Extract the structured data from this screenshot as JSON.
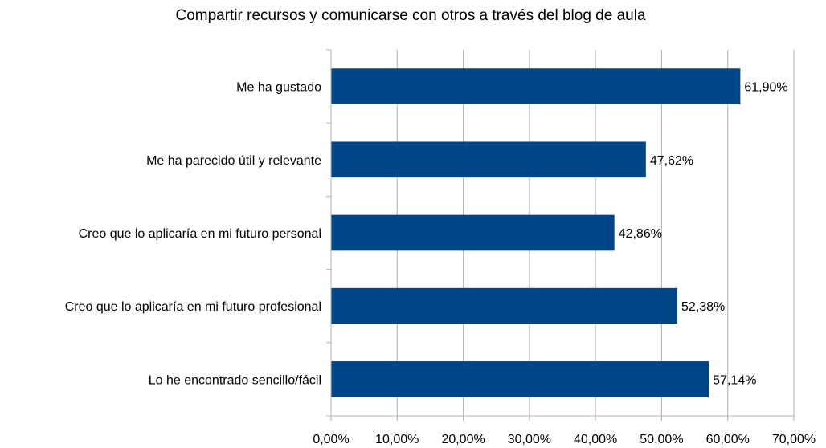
{
  "chart_data": {
    "type": "bar",
    "orientation": "horizontal",
    "title": "Compartir recursos y comunicarse con otros a través del blog de aula",
    "categories": [
      "Me ha gustado",
      "Me ha parecido útil y relevante",
      "Creo que lo aplicaría en mi futuro personal",
      "Creo que lo aplicaría en mi futuro profesional",
      "Lo he encontrado sencillo/fácil"
    ],
    "values": [
      61.9,
      47.62,
      42.86,
      52.38,
      57.14
    ],
    "data_labels": [
      "61,90%",
      "47,62%",
      "42,86%",
      "52,38%",
      "57,14%"
    ],
    "xlim": [
      0,
      70
    ],
    "x_ticks": [
      0,
      10,
      20,
      30,
      40,
      50,
      60,
      70
    ],
    "x_tick_labels": [
      "0,00%",
      "10,00%",
      "20,00%",
      "30,00%",
      "40,00%",
      "50,00%",
      "60,00%",
      "70,00%"
    ],
    "grid": "vertical",
    "legend": "none",
    "bar_color": "#004586",
    "grid_color": "#b3b3b3"
  }
}
